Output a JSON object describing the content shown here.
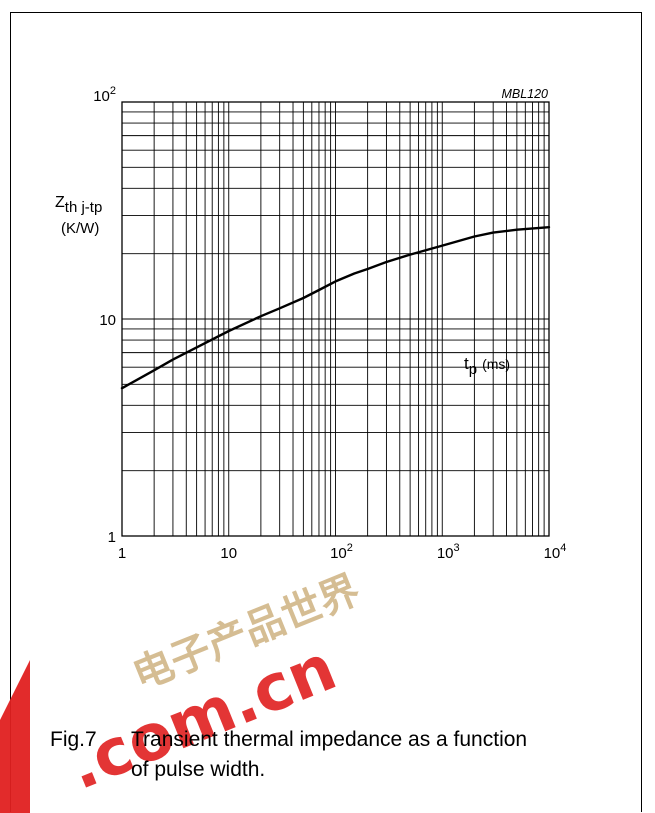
{
  "figure": {
    "code": "MBL120",
    "number": "Fig.7",
    "caption_line1": "Transient thermal impedance as a function",
    "caption_line2": "of pulse width."
  },
  "watermark": {
    "text_cn": "电子产品世界",
    "text_latin": ".com.cn",
    "colors": {
      "cn": "#c8a870",
      "latin": "#e02020",
      "bar": "#e02020"
    }
  },
  "chart_data": {
    "type": "line",
    "title": "",
    "xlabel": {
      "main": "t",
      "sub": "p",
      "unit": "(ms)"
    },
    "ylabel": {
      "main": "Z",
      "sub": "th j-tp",
      "unit": "(K/W)"
    },
    "x_scale": "log",
    "y_scale": "log",
    "xlim": [
      1,
      10000
    ],
    "ylim": [
      1,
      100
    ],
    "grid": true,
    "x_ticks": [
      {
        "value": 1,
        "base": "1",
        "exp": ""
      },
      {
        "value": 10,
        "base": "10",
        "exp": ""
      },
      {
        "value": 100,
        "base": "10",
        "exp": "2"
      },
      {
        "value": 1000,
        "base": "10",
        "exp": "3"
      },
      {
        "value": 10000,
        "base": "10",
        "exp": "4"
      }
    ],
    "y_ticks": [
      {
        "value": 1,
        "base": "1",
        "exp": ""
      },
      {
        "value": 10,
        "base": "10",
        "exp": ""
      },
      {
        "value": 100,
        "base": "10",
        "exp": "2"
      }
    ],
    "series": [
      {
        "x": [
          1,
          2,
          3,
          5,
          10,
          20,
          30,
          50,
          70,
          100,
          150,
          200,
          300,
          500,
          1000,
          2000,
          3000,
          5000,
          10000
        ],
        "y": [
          4.8,
          5.8,
          6.5,
          7.4,
          8.8,
          10.3,
          11.2,
          12.5,
          13.6,
          14.9,
          16.2,
          17.0,
          18.3,
          19.8,
          21.8,
          24.0,
          25.0,
          25.8,
          26.5
        ]
      }
    ]
  }
}
